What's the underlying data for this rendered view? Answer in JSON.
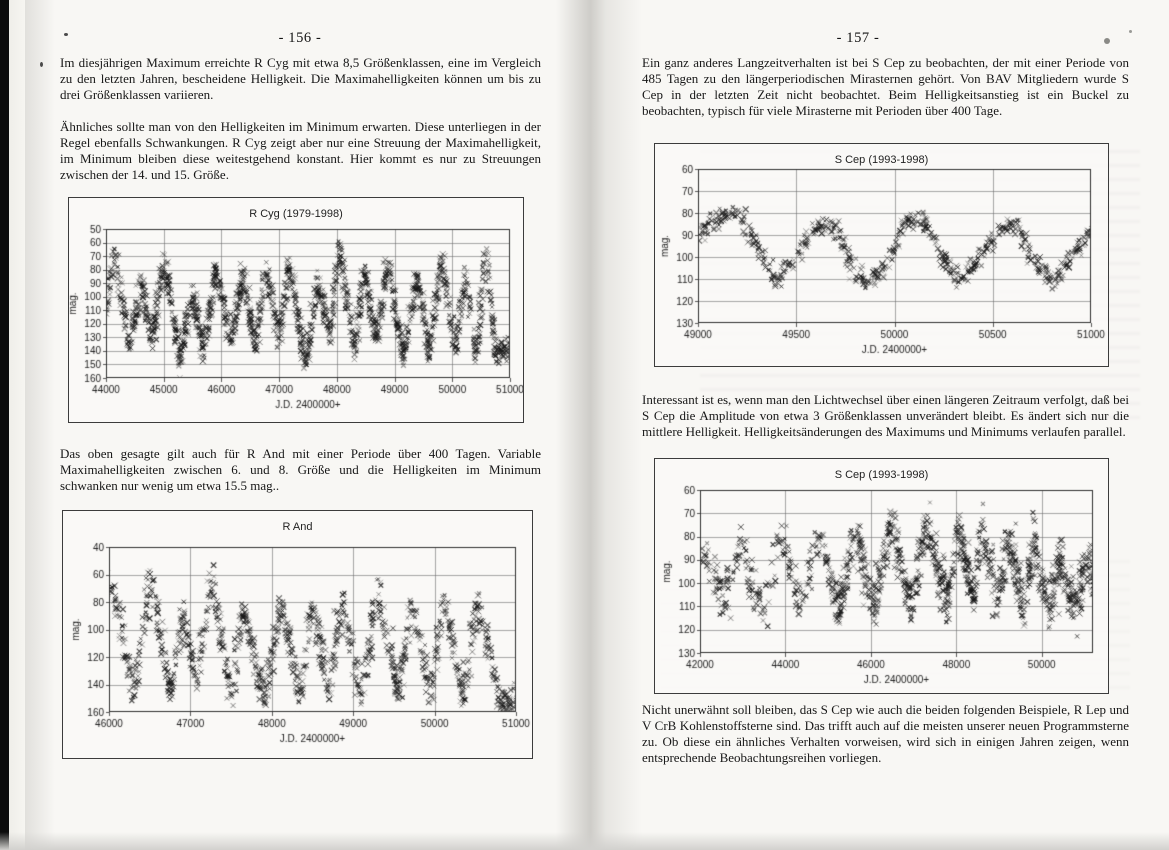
{
  "colors": {
    "ink": "#1c1c1c",
    "grid_line": "#6b6b6b",
    "plot_border": "#2e2e2e",
    "marker": "#1a1a1a",
    "page_background": "#f8f7f4"
  },
  "page_left": {
    "page_number": "- 156 -",
    "para1": "Im diesjährigen Maximum erreichte R Cyg mit etwa 8,5 Größenklassen, eine im Vergleich zu den letzten Jahren, bescheidene Helligkeit. Die Maximahelligkeiten können um bis zu drei Größenklassen variieren.",
    "para2": "Ähnliches sollte man von den Helligkeiten im Minimum erwarten. Diese unterliegen in der Regel ebenfalls Schwankungen. R Cyg zeigt aber nur eine Streuung der Maximahelligkeit, im Minimum bleiben diese weitestgehend konstant. Hier kommt es nur zu Streuungen zwischen der 14. und 15. Größe.",
    "para3": "Das oben gesagte gilt auch für R And mit einer Periode über 400 Tagen. Variable Maximahelligkeiten zwischen 6. und 8. Größe und die Helligkeiten im Minimum schwanken nur wenig um etwa 15.5 mag.."
  },
  "page_right": {
    "page_number": "- 157 -",
    "para1": "Ein ganz anderes Langzeitverhalten ist bei S Cep zu beobachten, der mit einer Periode von 485 Tagen zu den längerperiodischen Mirasternen gehört. Von BAV Mitgliedern wurde S Cep in der letzten Zeit nicht beobachtet. Beim Helligkeitsanstieg ist ein Buckel zu beobachten, typisch für viele Mirasterne mit Perioden über 400 Tage.",
    "para2": "Interessant ist es, wenn man den Lichtwechsel über einen längeren Zeitraum verfolgt, daß bei S Cep die Amplitude von etwa 3 Größenklassen unverändert bleibt. Es ändert sich nur die mittlere Helligkeit. Helligkeitsänderungen des Maximums und Minimums verlaufen parallel.",
    "para3": "Nicht unerwähnt soll bleiben, das S Cep wie auch die beiden folgenden Beispiele, R Lep und V CrB Kohlenstoffsterne sind. Das trifft auch auf die meisten unserer neuen Programmsterne zu. Ob diese ein ähnliches Verhalten vorweisen, wird sich in einigen Jahren zeigen, wenn entsprechende Beobachtungsreihen vorliegen."
  },
  "chart_data": [
    {
      "id": "r_cyg",
      "type": "scatter",
      "title": "R Cyg (1979-1998)",
      "xlabel": "J.D. 2400000+",
      "ylabel": "mag.",
      "marker": "x",
      "y_axis_inverted": true,
      "xlim": [
        44000,
        51000
      ],
      "xticks": [
        44000,
        45000,
        46000,
        47000,
        48000,
        49000,
        50000,
        51000
      ],
      "yticks": [
        50,
        60,
        70,
        80,
        90,
        100,
        110,
        120,
        130,
        140,
        150,
        160
      ],
      "light_curve_anchors": [
        [
          44000,
          110
        ],
        [
          44150,
          65
        ],
        [
          44400,
          140
        ],
        [
          44620,
          88
        ],
        [
          44800,
          132
        ],
        [
          45010,
          70
        ],
        [
          45290,
          150
        ],
        [
          45480,
          96
        ],
        [
          45700,
          140
        ],
        [
          45900,
          80
        ],
        [
          46150,
          133
        ],
        [
          46380,
          82
        ],
        [
          46600,
          140
        ],
        [
          46780,
          78
        ],
        [
          47000,
          133
        ],
        [
          47180,
          74
        ],
        [
          47450,
          150
        ],
        [
          47680,
          90
        ],
        [
          47880,
          128
        ],
        [
          48060,
          65
        ],
        [
          48300,
          140
        ],
        [
          48480,
          80
        ],
        [
          48680,
          133
        ],
        [
          48880,
          74
        ],
        [
          49150,
          145
        ],
        [
          49380,
          85
        ],
        [
          49600,
          140
        ],
        [
          49820,
          70
        ],
        [
          50050,
          140
        ],
        [
          50230,
          85
        ],
        [
          50420,
          145
        ],
        [
          50580,
          64
        ],
        [
          50750,
          140
        ]
      ],
      "scatter": {
        "n": 1700,
        "seed": 7,
        "x_jitter": 22,
        "y_jitter": 4.2
      }
    },
    {
      "id": "r_and",
      "type": "scatter",
      "title": "R And",
      "xlabel": "J.D. 2400000+",
      "ylabel": "mag.",
      "marker": "x",
      "y_axis_inverted": true,
      "xlim": [
        46000,
        51000
      ],
      "xticks": [
        46000,
        47000,
        48000,
        49000,
        50000,
        51000
      ],
      "yticks": [
        40,
        60,
        80,
        100,
        120,
        140,
        160
      ],
      "light_curve_anchors": [
        [
          46050,
          68
        ],
        [
          46300,
          145
        ],
        [
          46520,
          60
        ],
        [
          46750,
          150
        ],
        [
          46900,
          88
        ],
        [
          47080,
          140
        ],
        [
          47250,
          60
        ],
        [
          47500,
          148
        ],
        [
          47650,
          85
        ],
        [
          47900,
          150
        ],
        [
          48120,
          80
        ],
        [
          48350,
          152
        ],
        [
          48500,
          78
        ],
        [
          48700,
          145
        ],
        [
          48870,
          80
        ],
        [
          49100,
          150
        ],
        [
          49300,
          72
        ],
        [
          49550,
          148
        ],
        [
          49720,
          80
        ],
        [
          49950,
          150
        ],
        [
          50120,
          76
        ],
        [
          50350,
          152
        ],
        [
          50520,
          78
        ],
        [
          50800,
          152
        ]
      ],
      "scatter": {
        "n": 1150,
        "seed": 11,
        "x_jitter": 22,
        "y_jitter": 4.5
      }
    },
    {
      "id": "s_cep_recent",
      "type": "scatter",
      "title": "S Cep (1993-1998)",
      "xlabel": "J.D. 2400000+",
      "ylabel": "mag.",
      "marker": "x",
      "y_axis_inverted": true,
      "xlim": [
        49000,
        51000
      ],
      "xticks": [
        49000,
        49500,
        50000,
        50500,
        51000
      ],
      "yticks": [
        60,
        70,
        80,
        90,
        100,
        110,
        120,
        130
      ],
      "light_curve_anchors": [
        [
          49000,
          90
        ],
        [
          49120,
          81
        ],
        [
          49200,
          80
        ],
        [
          49300,
          95
        ],
        [
          49390,
          111
        ],
        [
          49500,
          100
        ],
        [
          49600,
          87
        ],
        [
          49700,
          86
        ],
        [
          49800,
          108
        ],
        [
          49870,
          114
        ],
        [
          49950,
          105
        ],
        [
          50060,
          84
        ],
        [
          50150,
          83
        ],
        [
          50250,
          100
        ],
        [
          50330,
          112
        ],
        [
          50430,
          100
        ],
        [
          50540,
          86
        ],
        [
          50620,
          85
        ],
        [
          50720,
          103
        ],
        [
          50800,
          112
        ],
        [
          50900,
          100
        ],
        [
          51000,
          88
        ]
      ],
      "scatter": {
        "n": 620,
        "seed": 23,
        "x_jitter": 12,
        "y_jitter": 1.8
      }
    },
    {
      "id": "s_cep_longterm",
      "type": "scatter",
      "title": "S Cep (1993-1998)",
      "xlabel": "J.D. 2400000+",
      "ylabel": "mag.",
      "marker": "x",
      "y_axis_inverted": true,
      "xlim": [
        42000,
        51200
      ],
      "xticks": [
        42000,
        44000,
        46000,
        48000,
        50000
      ],
      "yticks": [
        60,
        70,
        80,
        90,
        100,
        110,
        120,
        130
      ],
      "light_curve_anchors": [
        [
          42100,
          88
        ],
        [
          42300,
          95
        ],
        [
          42550,
          108
        ],
        [
          42800,
          92
        ],
        [
          43000,
          82
        ],
        [
          43250,
          103
        ],
        [
          43500,
          112
        ],
        [
          43700,
          95
        ],
        [
          43900,
          78
        ],
        [
          44150,
          98
        ],
        [
          44400,
          108
        ],
        [
          44600,
          92
        ],
        [
          44800,
          80
        ],
        [
          45050,
          100
        ],
        [
          45250,
          112
        ],
        [
          45450,
          95
        ],
        [
          45650,
          78
        ],
        [
          45900,
          100
        ],
        [
          46100,
          110
        ],
        [
          46300,
          90
        ],
        [
          46500,
          76
        ],
        [
          46750,
          98
        ],
        [
          46950,
          108
        ],
        [
          47150,
          88
        ],
        [
          47350,
          76
        ],
        [
          47600,
          97
        ],
        [
          47800,
          108
        ],
        [
          48000,
          75
        ],
        [
          48200,
          88
        ],
        [
          48400,
          105
        ],
        [
          48600,
          80
        ],
        [
          48800,
          95
        ],
        [
          49000,
          108
        ],
        [
          49200,
          82
        ],
        [
          49400,
          95
        ],
        [
          49600,
          112
        ],
        [
          49800,
          82
        ],
        [
          50000,
          100
        ],
        [
          50200,
          112
        ],
        [
          50400,
          88
        ],
        [
          50600,
          100
        ],
        [
          50800,
          112
        ],
        [
          51000,
          90
        ],
        [
          51150,
          95
        ]
      ],
      "scatter": {
        "n": 1550,
        "seed": 42,
        "x_jitter": 30,
        "y_jitter": 5.0,
        "sparse_before": {
          "x": 45000,
          "keep": 0.38
        }
      }
    }
  ]
}
